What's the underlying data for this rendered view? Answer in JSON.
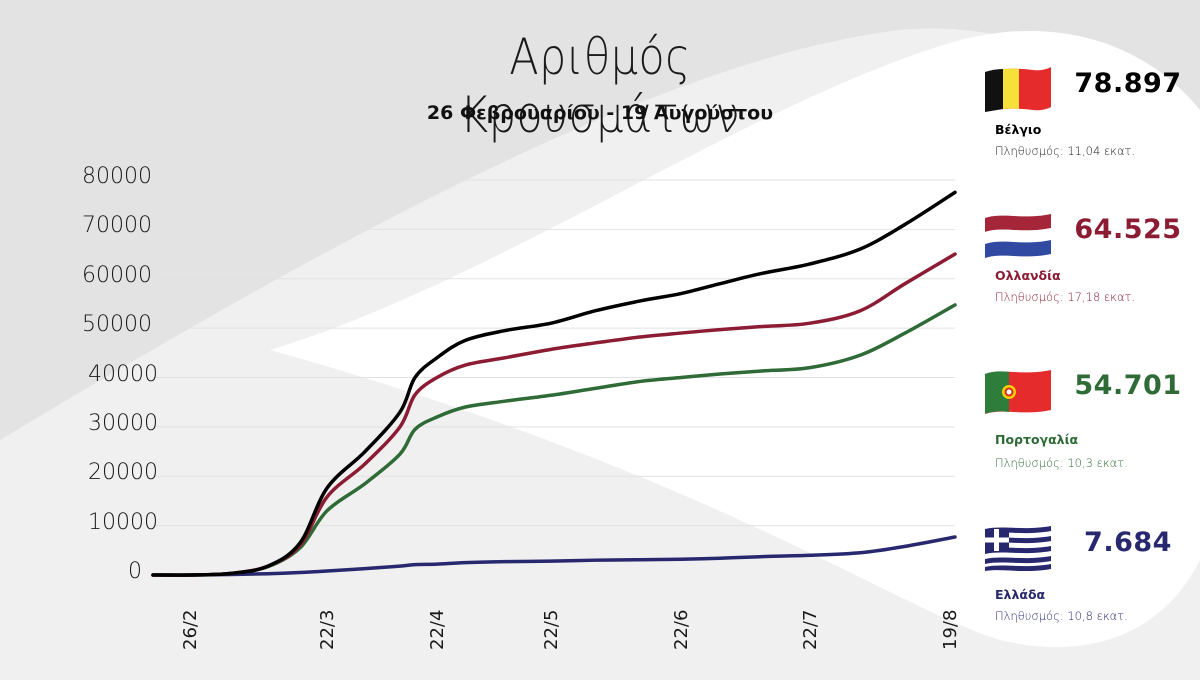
{
  "header": {
    "title": "Αριθμός Κρουσμάτων",
    "subtitle": "26 Φεβρουαρίου - 19 Αυγούστου"
  },
  "colors": {
    "belgium": "#000000",
    "netherlands": "#8c1c33",
    "portugal": "#2e6b36",
    "greece": "#27286e",
    "grid": "#e2e2e2",
    "background_dark": "#e3e3e3",
    "background_light": "#f0f0f0",
    "background_white": "#ffffff"
  },
  "legend": [
    {
      "country": "Βέλγιο",
      "count": "78.897",
      "population": "Πληθυσμός: 11,04 εκατ.",
      "flag_icon": "belgium-flag-icon",
      "color": "#000000",
      "sub_color": "#1a1a1a"
    },
    {
      "country": "Ολλανδία",
      "count": "64.525",
      "population": "Πληθυσμός: 17,18 εκατ.",
      "flag_icon": "netherlands-flag-icon",
      "color": "#8c1c33",
      "sub_color": "#8c1c33"
    },
    {
      "country": "Πορτογαλία",
      "count": "54.701",
      "population": "Πληθυσμός: 10,3 εκατ.",
      "flag_icon": "portugal-flag-icon",
      "color": "#2e6b36",
      "sub_color": "#2e6b36"
    },
    {
      "country": "Ελλάδα",
      "count": "7.684",
      "population": "Πληθυσμός: 10,8 εκατ.",
      "flag_icon": "greece-flag-icon",
      "color": "#27286e",
      "sub_color": "#27286e"
    }
  ],
  "chart_data": {
    "type": "line",
    "title": "Αριθμός Κρουσμάτων",
    "subtitle": "26 Φεβρουαρίου - 19 Αυγούστου",
    "xlabel": "",
    "ylabel": "",
    "ylim": [
      0,
      80000
    ],
    "yticks": [
      0,
      10000,
      20000,
      30000,
      40000,
      50000,
      60000,
      70000,
      80000
    ],
    "ytick_labels": [
      "0",
      "10000",
      "20000",
      "30000",
      "40000",
      "50000",
      "60000",
      "70000",
      "80000"
    ],
    "xtick_labels": [
      "26/2",
      "22/3",
      "22/4",
      "22/5",
      "22/6",
      "22/7",
      "19/8"
    ],
    "grid": true,
    "legend_position": "right",
    "x": [
      "start",
      "26/2",
      "5/3",
      "12/3",
      "18/3",
      "22/3",
      "29/3",
      "5/4",
      "12/4",
      "22/4",
      "1/5",
      "10/5",
      "22/5",
      "1/6",
      "10/6",
      "22/6",
      "1/7",
      "10/7",
      "22/7",
      "1/8",
      "10/8",
      "19/8"
    ],
    "series": [
      {
        "name": "Βέλγιο",
        "color": "#000000",
        "values": [
          0,
          0,
          300,
          1800,
          6500,
          17600,
          25000,
          33000,
          40000,
          44000,
          47500,
          49500,
          51000,
          53500,
          55500,
          57000,
          59000,
          61000,
          63000,
          66000,
          71000,
          77500
        ]
      },
      {
        "name": "Ολλανδία",
        "color": "#8c1c33",
        "values": [
          0,
          0,
          300,
          1800,
          6000,
          15800,
          22500,
          30000,
          36500,
          40000,
          42500,
          44000,
          45700,
          47000,
          48200,
          49000,
          49700,
          50300,
          51000,
          53500,
          59000,
          65000
        ]
      },
      {
        "name": "Πορτογαλία",
        "color": "#2e6b36",
        "values": [
          0,
          0,
          300,
          1700,
          5500,
          13000,
          18500,
          24500,
          29500,
          32000,
          34000,
          35200,
          36400,
          37800,
          39200,
          40000,
          40700,
          41300,
          42000,
          44500,
          49000,
          54700
        ]
      },
      {
        "name": "Ελλάδα",
        "color": "#27286e",
        "values": [
          0,
          0,
          100,
          250,
          500,
          800,
          1300,
          1800,
          2100,
          2200,
          2500,
          2700,
          2800,
          3000,
          3100,
          3200,
          3400,
          3700,
          4000,
          4500,
          5800,
          7700
        ]
      }
    ]
  }
}
